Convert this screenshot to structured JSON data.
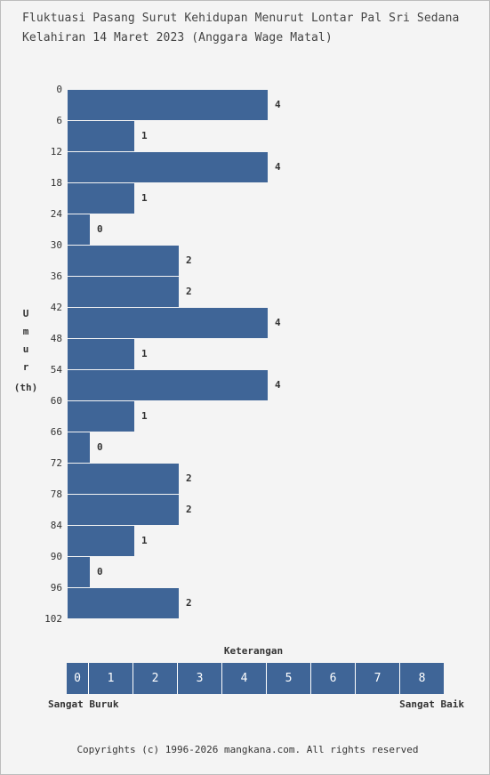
{
  "title_line1": "Fluktuasi Pasang Surut Kehidupan Menurut Lontar Pal Sri Sedana",
  "title_line2": "Kelahiran 14 Maret 2023 (Anggara Wage Matal)",
  "ylabel": {
    "letters": [
      "U",
      "m",
      "u",
      "r"
    ],
    "unit": "(th)"
  },
  "legend": {
    "title": "Keterangan",
    "scale": [
      "0",
      "1",
      "2",
      "3",
      "4",
      "5",
      "6",
      "7",
      "8"
    ],
    "low_label": "Sangat Buruk",
    "high_label": "Sangat Baik"
  },
  "footer": "Copyrights (c) 1996-2026 mangkana.com. All rights reserved",
  "colors": {
    "bar": "#3f6597",
    "background": "#f4f4f4"
  },
  "chart_data": {
    "type": "bar",
    "orientation": "horizontal",
    "title": "Fluktuasi Pasang Surut Kehidupan Menurut Lontar Pal Sri Sedana Kelahiran 14 Maret 2023 (Anggara Wage Matal)",
    "ylabel": "Umur (th)",
    "xlabel": "",
    "y_ticks": [
      "0",
      "6",
      "12",
      "18",
      "24",
      "30",
      "36",
      "42",
      "48",
      "54",
      "60",
      "66",
      "72",
      "78",
      "84",
      "90",
      "96",
      "102"
    ],
    "categories": [
      "0",
      "6",
      "12",
      "18",
      "24",
      "30",
      "36",
      "42",
      "48",
      "54",
      "60",
      "66",
      "72",
      "78",
      "84",
      "90",
      "96"
    ],
    "values": [
      4,
      1,
      4,
      1,
      0,
      2,
      2,
      4,
      1,
      4,
      1,
      0,
      2,
      2,
      1,
      0,
      2
    ],
    "xlim": [
      0,
      8
    ],
    "grid": false,
    "legend": "bottom"
  }
}
